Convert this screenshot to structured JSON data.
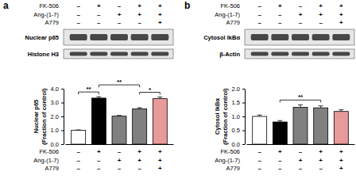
{
  "chart_data": [
    {
      "type": "bar",
      "panel": "a",
      "blots": [
        "Nuclear p65",
        "Histone H3"
      ],
      "treatments": [
        {
          "name": "FK-506",
          "signs": [
            "–",
            "+",
            "–",
            "+",
            "+"
          ]
        },
        {
          "name": "Ang-(1-7)",
          "signs": [
            "–",
            "–",
            "+",
            "+",
            "+"
          ]
        },
        {
          "name": "A779",
          "signs": [
            "–",
            "–",
            "–",
            "–",
            "+"
          ]
        }
      ],
      "categories": [
        null,
        null,
        null,
        null,
        null
      ],
      "values": [
        1.0,
        3.32,
        2.02,
        2.55,
        3.28
      ],
      "errors": [
        0.03,
        0.1,
        0.05,
        0.08,
        0.12
      ],
      "colors": [
        "#ffffff",
        "#000000",
        "#808080",
        "#808080",
        "#e8999a"
      ],
      "ylabel": [
        "Nuclear p65",
        "(Fraction of control)"
      ],
      "ylim": [
        0,
        4
      ],
      "yticks": [
        {
          "value": 0,
          "label": "0.0"
        },
        {
          "value": 1,
          "label": "1.0"
        },
        {
          "value": 2,
          "label": "2.0"
        },
        {
          "value": 3,
          "label": "3.0"
        },
        {
          "value": 4,
          "label": "4.0"
        }
      ],
      "tick_labels": "y",
      "significance": [
        {
          "pair": [
            0,
            1
          ],
          "label": "**"
        },
        {
          "pair": [
            1,
            3
          ],
          "label": "**"
        },
        {
          "pair": [
            3,
            4
          ],
          "label": "*"
        }
      ]
    },
    {
      "type": "bar",
      "panel": "b",
      "blots": [
        "Cytosol IkBα",
        "β-Actin"
      ],
      "treatments": [
        {
          "name": "FK-506",
          "signs": [
            "–",
            "+",
            "–",
            "+",
            "+"
          ]
        },
        {
          "name": "Ang-(1-7)",
          "signs": [
            "–",
            "–",
            "+",
            "+",
            "+"
          ]
        },
        {
          "name": "A779",
          "signs": [
            "–",
            "–",
            "–",
            "–",
            "+"
          ]
        }
      ],
      "categories": [
        null,
        null,
        null,
        null,
        null
      ],
      "values": [
        1.0,
        0.8,
        1.33,
        1.31,
        1.18
      ],
      "errors": [
        0.05,
        0.05,
        0.09,
        0.07,
        0.06
      ],
      "colors": [
        "#ffffff",
        "#000000",
        "#808080",
        "#808080",
        "#e8999a"
      ],
      "ylabel": [
        "Cytosol IkBα",
        "(Fraction of control)"
      ],
      "ylim": [
        0,
        2
      ],
      "yticks": [
        {
          "value": 0,
          "label": "0.0"
        },
        {
          "value": 0.5,
          "label": "0.5"
        },
        {
          "value": 1,
          "label": "1.0"
        },
        {
          "value": 1.5,
          "label": "1.5"
        },
        {
          "value": 2,
          "label": "2.0"
        }
      ],
      "tick_labels": "y",
      "significance": [
        {
          "pair": [
            1,
            3
          ],
          "label": "**"
        }
      ]
    }
  ]
}
